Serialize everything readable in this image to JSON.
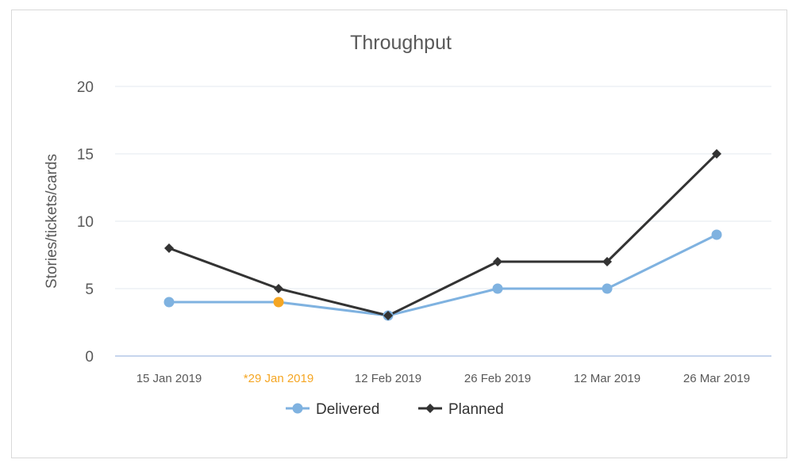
{
  "chart_data": {
    "type": "line",
    "title": "Throughput",
    "xlabel": "",
    "ylabel": "Stories/tickets/cards",
    "categories": [
      "15 Jan 2019",
      "*29 Jan 2019",
      "12 Feb 2019",
      "26 Feb 2019",
      "12 Mar 2019",
      "26 Mar 2019"
    ],
    "highlight_category_index": 1,
    "highlight_color": "#f5a623",
    "ylim": [
      0,
      20
    ],
    "yticks": [
      0,
      5,
      10,
      15,
      20
    ],
    "grid": true,
    "legend": "bottom-center",
    "series": [
      {
        "name": "Delivered",
        "values": [
          4,
          4,
          3,
          5,
          5,
          9
        ],
        "color": "#7fb2e0",
        "marker": "circle"
      },
      {
        "name": "Planned",
        "values": [
          8,
          5,
          3,
          7,
          7,
          15
        ],
        "color": "#333333",
        "marker": "diamond"
      }
    ]
  }
}
